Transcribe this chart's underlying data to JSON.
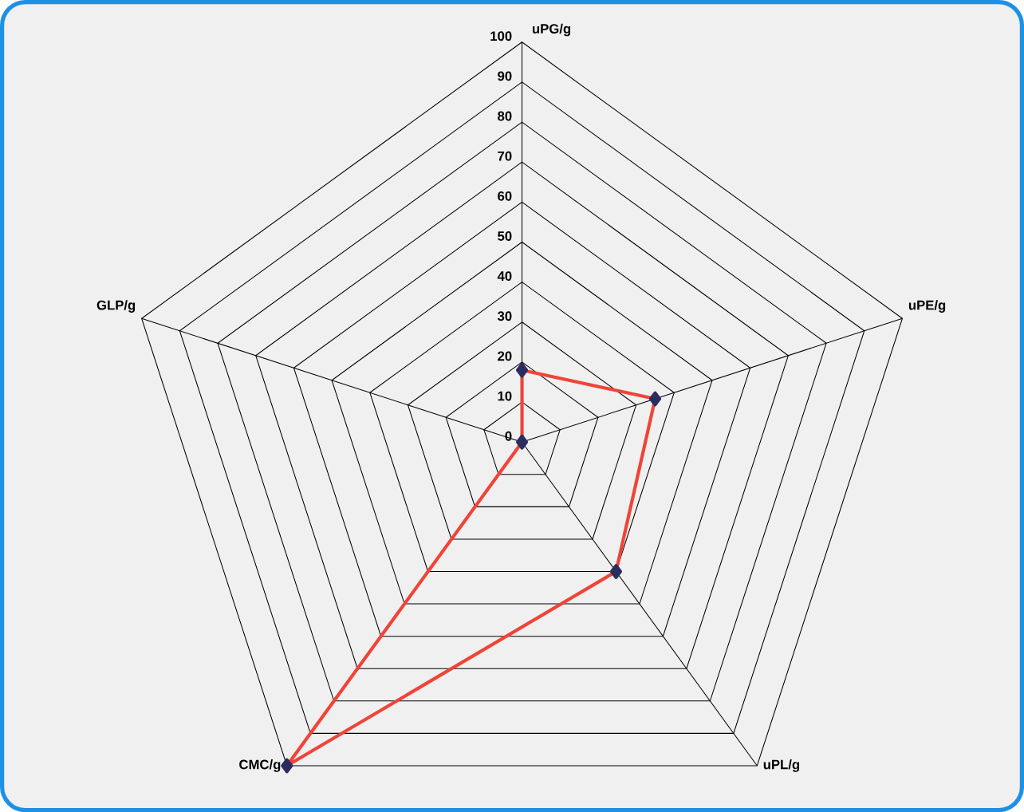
{
  "chart_data": {
    "type": "radar",
    "categories": [
      "uPG/g",
      "uPE/g",
      "uPL/g",
      "CMC/g",
      "GLP/g"
    ],
    "series": [
      {
        "color": "#f04438",
        "values": [
          18,
          35,
          40,
          100,
          0
        ]
      }
    ],
    "ylim": [
      0,
      100
    ],
    "yticks": [
      0,
      10,
      20,
      30,
      40,
      50,
      60,
      70,
      80,
      90,
      100
    ],
    "grid": true,
    "marker": "diamond",
    "line_style": "solid"
  }
}
